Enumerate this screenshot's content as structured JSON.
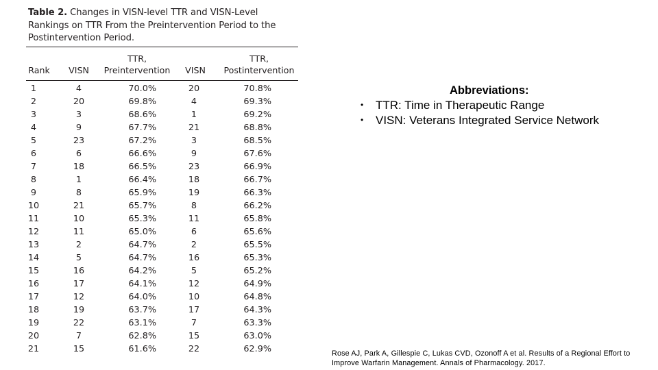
{
  "table": {
    "caption_label": "Table 2.",
    "caption_text": "Changes in VISN-level TTR and VISN-Level Rankings on TTR From the Preintervention Period to the Postintervention Period.",
    "headers": {
      "rank": "Rank",
      "visn_pre": "VISN",
      "ttr_pre_line1": "TTR,",
      "ttr_pre_line2": "Preintervention",
      "visn_post": "VISN",
      "ttr_post_line1": "TTR,",
      "ttr_post_line2": "Postintervention"
    },
    "rows": [
      {
        "rank": "1",
        "visn_pre": "4",
        "ttr_pre": "70.0%",
        "visn_post": "20",
        "ttr_post": "70.8%"
      },
      {
        "rank": "2",
        "visn_pre": "20",
        "ttr_pre": "69.8%",
        "visn_post": "4",
        "ttr_post": "69.3%"
      },
      {
        "rank": "3",
        "visn_pre": "3",
        "ttr_pre": "68.6%",
        "visn_post": "1",
        "ttr_post": "69.2%"
      },
      {
        "rank": "4",
        "visn_pre": "9",
        "ttr_pre": "67.7%",
        "visn_post": "21",
        "ttr_post": "68.8%"
      },
      {
        "rank": "5",
        "visn_pre": "23",
        "ttr_pre": "67.2%",
        "visn_post": "3",
        "ttr_post": "68.5%"
      },
      {
        "rank": "6",
        "visn_pre": "6",
        "ttr_pre": "66.6%",
        "visn_post": "9",
        "ttr_post": "67.6%"
      },
      {
        "rank": "7",
        "visn_pre": "18",
        "ttr_pre": "66.5%",
        "visn_post": "23",
        "ttr_post": "66.9%"
      },
      {
        "rank": "8",
        "visn_pre": "1",
        "ttr_pre": "66.4%",
        "visn_post": "18",
        "ttr_post": "66.7%"
      },
      {
        "rank": "9",
        "visn_pre": "8",
        "ttr_pre": "65.9%",
        "visn_post": "19",
        "ttr_post": "66.3%"
      },
      {
        "rank": "10",
        "visn_pre": "21",
        "ttr_pre": "65.7%",
        "visn_post": "8",
        "ttr_post": "66.2%"
      },
      {
        "rank": "11",
        "visn_pre": "10",
        "ttr_pre": "65.3%",
        "visn_post": "11",
        "ttr_post": "65.8%"
      },
      {
        "rank": "12",
        "visn_pre": "11",
        "ttr_pre": "65.0%",
        "visn_post": "6",
        "ttr_post": "65.6%"
      },
      {
        "rank": "13",
        "visn_pre": "2",
        "ttr_pre": "64.7%",
        "visn_post": "2",
        "ttr_post": "65.5%"
      },
      {
        "rank": "14",
        "visn_pre": "5",
        "ttr_pre": "64.7%",
        "visn_post": "16",
        "ttr_post": "65.3%"
      },
      {
        "rank": "15",
        "visn_pre": "16",
        "ttr_pre": "64.2%",
        "visn_post": "5",
        "ttr_post": "65.2%"
      },
      {
        "rank": "16",
        "visn_pre": "17",
        "ttr_pre": "64.1%",
        "visn_post": "12",
        "ttr_post": "64.9%"
      },
      {
        "rank": "17",
        "visn_pre": "12",
        "ttr_pre": "64.0%",
        "visn_post": "10",
        "ttr_post": "64.8%"
      },
      {
        "rank": "18",
        "visn_pre": "19",
        "ttr_pre": "63.7%",
        "visn_post": "17",
        "ttr_post": "64.3%"
      },
      {
        "rank": "19",
        "visn_pre": "22",
        "ttr_pre": "63.1%",
        "visn_post": "7",
        "ttr_post": "63.3%"
      },
      {
        "rank": "20",
        "visn_pre": "7",
        "ttr_pre": "62.8%",
        "visn_post": "15",
        "ttr_post": "63.0%"
      },
      {
        "rank": "21",
        "visn_pre": "15",
        "ttr_pre": "61.6%",
        "visn_post": "22",
        "ttr_post": "62.9%"
      }
    ]
  },
  "abbreviations": {
    "title": "Abbreviations:",
    "items": [
      "TTR: Time in Therapeutic Range",
      "VISN: Veterans Integrated Service Network"
    ],
    "bullet": "•"
  },
  "citation": "Rose AJ, Park A, Gillespie C, Lukas CVD, Ozonoff A et al. Results of a Regional Effort to Improve Warfarin Management. Annals of Pharmacology. 2017."
}
